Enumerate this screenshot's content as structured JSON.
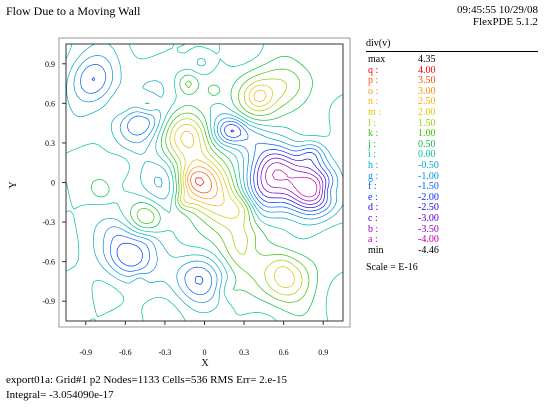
{
  "header": {
    "title": "Flow Due to a Moving Wall",
    "timestamp": "09:45:55 10/29/08",
    "version": "FlexPDE 5.1.2"
  },
  "legend": {
    "title": "div(v)",
    "max_label": "max",
    "max_value": "4.35",
    "min_label": "min",
    "min_value": "-4.46",
    "levels": [
      {
        "key": "q :",
        "value": "4.00",
        "color": "#ff0000"
      },
      {
        "key": "p :",
        "value": "3.50",
        "color": "#ff5000"
      },
      {
        "key": "o :",
        "value": "3.00",
        "color": "#ff9000"
      },
      {
        "key": "n :",
        "value": "2.50",
        "color": "#ffb000"
      },
      {
        "key": "m :",
        "value": "2.00",
        "color": "#d8c800"
      },
      {
        "key": "l :",
        "value": "1.50",
        "color": "#a0d000"
      },
      {
        "key": "k :",
        "value": "1.00",
        "color": "#40c000"
      },
      {
        "key": "j :",
        "value": "0.50",
        "color": "#00c040"
      },
      {
        "key": "i :",
        "value": "0.00",
        "color": "#00c0a0"
      },
      {
        "key": "h :",
        "value": "-0.50",
        "color": "#00a8c8"
      },
      {
        "key": "g :",
        "value": "-1.00",
        "color": "#0090e0"
      },
      {
        "key": "f :",
        "value": "-1.50",
        "color": "#0060ff"
      },
      {
        "key": "e :",
        "value": "-2.00",
        "color": "#0030ff"
      },
      {
        "key": "d :",
        "value": "-2.50",
        "color": "#2000e0"
      },
      {
        "key": "c :",
        "value": "-3.00",
        "color": "#6000d0"
      },
      {
        "key": "b :",
        "value": "-3.50",
        "color": "#9000c0"
      },
      {
        "key": "a :",
        "value": "-4.00",
        "color": "#c000b0"
      }
    ],
    "scale": "Scale = E-16"
  },
  "footer": {
    "line1": "export01a:  Grid#1  p2  Nodes=1133 Cells=536 RMS Err= 2.e-15",
    "line2": "Integral= -3.054090e-17"
  },
  "chart_data": {
    "type": "contour",
    "variable": "div(v)",
    "xlabel": "X",
    "ylabel": "Y",
    "xlim": [
      -1.05,
      1.05
    ],
    "ylim": [
      -1.05,
      1.05
    ],
    "x_ticks": [
      "-0.9",
      "-0.6",
      "-0.3",
      "0",
      "0.3",
      "0.6",
      "0.9"
    ],
    "y_ticks": [
      "0.9",
      "0.6",
      "0.3",
      "0",
      "-0.3",
      "-0.6",
      "-0.9"
    ],
    "max": 4.35,
    "min": -4.46,
    "scale_exponent": -16,
    "contour_levels": [
      4.0,
      3.5,
      3.0,
      2.5,
      2.0,
      1.5,
      1.0,
      0.5,
      0.0,
      -0.5,
      -1.0,
      -1.5,
      -2.0,
      -2.5,
      -3.0,
      -3.5,
      -4.0
    ],
    "features": [
      {
        "x": -0.05,
        "y": 0.0,
        "value": 4.0
      },
      {
        "x": -0.12,
        "y": 0.35,
        "value": 2.5
      },
      {
        "x": 0.18,
        "y": -0.2,
        "value": 2.0
      },
      {
        "x": 0.28,
        "y": -0.5,
        "value": 1.5
      },
      {
        "x": 0.62,
        "y": -0.72,
        "value": 2.5
      },
      {
        "x": 0.65,
        "y": 0.75,
        "value": 1.5
      },
      {
        "x": 0.4,
        "y": 0.65,
        "value": 1.5
      },
      {
        "x": 0.55,
        "y": 0.1,
        "value": -3.0
      },
      {
        "x": 0.8,
        "y": -0.05,
        "value": -4.0
      },
      {
        "x": -0.5,
        "y": 0.5,
        "value": -2.5
      },
      {
        "x": -0.85,
        "y": 0.78,
        "value": -2.0
      },
      {
        "x": -0.58,
        "y": -0.55,
        "value": -2.5
      },
      {
        "x": -0.05,
        "y": -0.72,
        "value": -2.0
      },
      {
        "x": 0.45,
        "y": -0.1,
        "value": -2.0
      },
      {
        "x": -0.3,
        "y": 0.0,
        "value": -1.5
      }
    ],
    "grid": false
  }
}
